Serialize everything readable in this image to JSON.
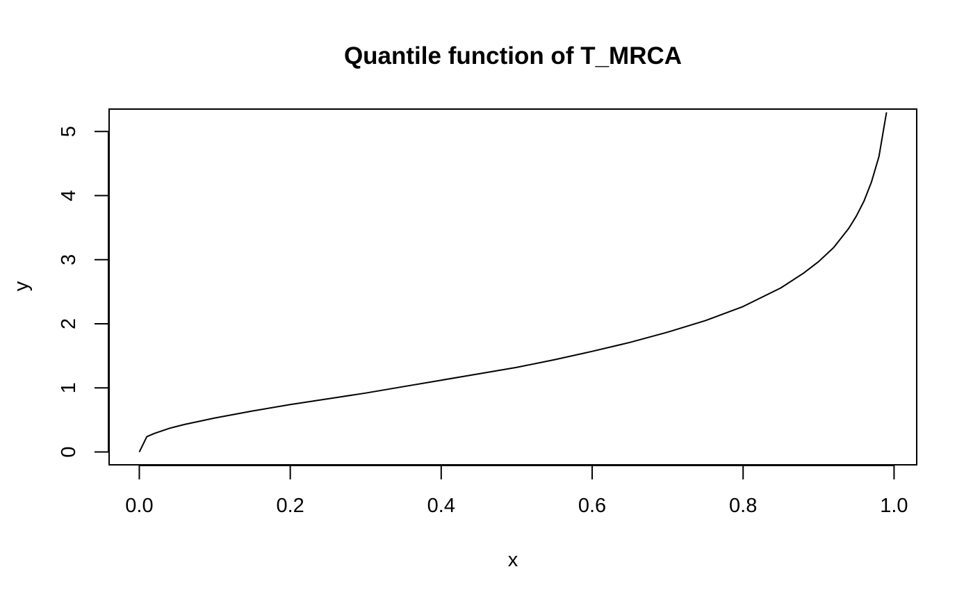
{
  "chart_data": {
    "type": "line",
    "title": "Quantile function of T_MRCA",
    "xlabel": "x",
    "ylabel": "y",
    "xlim": [
      -0.04,
      1.03
    ],
    "ylim": [
      -0.2,
      5.35
    ],
    "x_ticks": [
      0.0,
      0.2,
      0.4,
      0.6,
      0.8,
      1.0
    ],
    "x_tick_labels": [
      "0.0",
      "0.2",
      "0.4",
      "0.6",
      "0.8",
      "1.0"
    ],
    "y_ticks": [
      0,
      1,
      2,
      3,
      4,
      5
    ],
    "y_tick_labels": [
      "0",
      "1",
      "2",
      "3",
      "4",
      "5"
    ],
    "grid": false,
    "legend": "none",
    "line_color": "#000000",
    "series": [
      {
        "x": [
          0.0,
          0.01,
          0.02,
          0.04,
          0.06,
          0.08,
          0.1,
          0.15,
          0.2,
          0.25,
          0.3,
          0.35,
          0.4,
          0.45,
          0.5,
          0.55,
          0.6,
          0.65,
          0.7,
          0.75,
          0.8,
          0.85,
          0.88,
          0.9,
          0.92,
          0.94,
          0.95,
          0.96,
          0.97,
          0.98,
          0.99
        ],
        "y": [
          0.0,
          0.24,
          0.29,
          0.37,
          0.43,
          0.48,
          0.53,
          0.64,
          0.74,
          0.83,
          0.92,
          1.02,
          1.12,
          1.22,
          1.32,
          1.44,
          1.57,
          1.71,
          1.87,
          2.05,
          2.27,
          2.56,
          2.79,
          2.97,
          3.19,
          3.49,
          3.68,
          3.91,
          4.21,
          4.61,
          5.3
        ]
      }
    ]
  }
}
